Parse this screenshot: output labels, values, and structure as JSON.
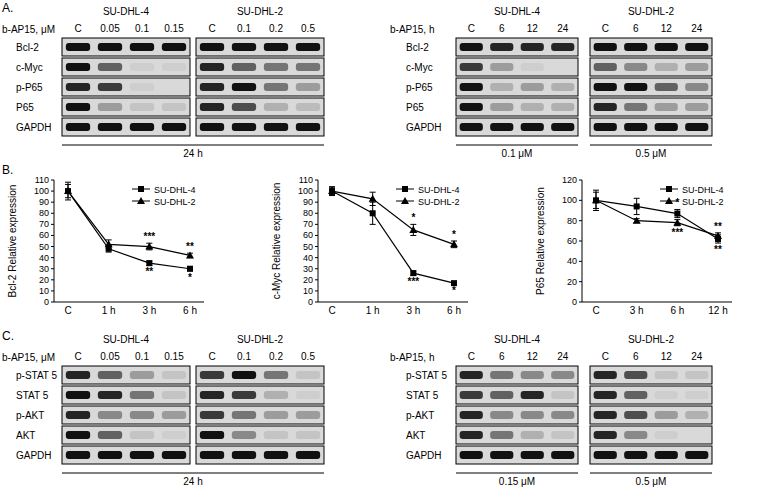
{
  "figure": {
    "panels": [
      {
        "letter": "A.",
        "blots": [
          {
            "treatment": "b-AP15, μM",
            "rows": [
              "Bcl-2",
              "c-Myc",
              "p-P65",
              "P65",
              "GAPDH"
            ],
            "footers": [
              "24 h"
            ],
            "groups": [
              {
                "cell_line": "SU-DHL-4",
                "lanes": [
                  "C",
                  "0.05",
                  "0.1",
                  "0.15"
                ],
                "intensity": [
                  [
                    1,
                    1,
                    1,
                    1
                  ],
                  [
                    1,
                    0.6,
                    0.05,
                    0.05
                  ],
                  [
                    0.9,
                    0.8,
                    0.05,
                    0
                  ],
                  [
                    1,
                    0.3,
                    0.1,
                    0.1
                  ],
                  [
                    1,
                    1,
                    1,
                    1
                  ]
                ]
              },
              {
                "cell_line": "SU-DHL-2",
                "lanes": [
                  "C",
                  "0.1",
                  "0.2",
                  "0.5"
                ],
                "intensity": [
                  [
                    1,
                    1,
                    1,
                    1
                  ],
                  [
                    0.9,
                    0.6,
                    0.5,
                    0.5
                  ],
                  [
                    0.9,
                    1,
                    0.5,
                    0.3
                  ],
                  [
                    0.9,
                    0.7,
                    0.2,
                    0.15
                  ],
                  [
                    1,
                    1,
                    1,
                    1
                  ]
                ]
              }
            ]
          },
          {
            "treatment": "b-AP15, h",
            "rows": [
              "Bcl-2",
              "c-Myc",
              "p-P65",
              "P65",
              "GAPDH"
            ],
            "footers": [
              "0.1 μM",
              "0.5 μM"
            ],
            "groups": [
              {
                "cell_line": "SU-DHL-4",
                "lanes": [
                  "C",
                  "6",
                  "12",
                  "24"
                ],
                "intensity": [
                  [
                    1,
                    0.9,
                    0.9,
                    0.9
                  ],
                  [
                    0.8,
                    0.3,
                    0.05,
                    0
                  ],
                  [
                    1,
                    0.2,
                    0.3,
                    0.2
                  ],
                  [
                    1,
                    0.3,
                    0.2,
                    0.2
                  ],
                  [
                    1,
                    1,
                    1,
                    1
                  ]
                ]
              },
              {
                "cell_line": "SU-DHL-2",
                "lanes": [
                  "C",
                  "6",
                  "12",
                  "24"
                ],
                "intensity": [
                  [
                    1,
                    1,
                    1,
                    1
                  ],
                  [
                    0.6,
                    0.4,
                    0.2,
                    0.3
                  ],
                  [
                    1,
                    1,
                    0.6,
                    0.4
                  ],
                  [
                    0.9,
                    0.5,
                    0.3,
                    0.3
                  ],
                  [
                    1,
                    1,
                    1,
                    1
                  ]
                ]
              }
            ]
          }
        ]
      },
      {
        "letter": "B."
      },
      {
        "letter": "C.",
        "blots": [
          {
            "treatment": "b-AP15, μM",
            "rows": [
              "p-STAT 5",
              "STAT 5",
              "p-AKT",
              "AKT",
              "GAPDH"
            ],
            "footers": [
              "24 h"
            ],
            "groups": [
              {
                "cell_line": "SU-DHL-4",
                "lanes": [
                  "C",
                  "0.05",
                  "0.1",
                  "0.15"
                ],
                "intensity": [
                  [
                    0.9,
                    0.6,
                    0.3,
                    0.1
                  ],
                  [
                    1,
                    0.9,
                    0.5,
                    0.1
                  ],
                  [
                    0.9,
                    0.4,
                    0.4,
                    0.3
                  ],
                  [
                    1,
                    0.6,
                    0.1,
                    0.05
                  ],
                  [
                    1,
                    1,
                    1,
                    1
                  ]
                ]
              },
              {
                "cell_line": "SU-DHL-2",
                "lanes": [
                  "C",
                  "0.1",
                  "0.2",
                  "0.5"
                ],
                "intensity": [
                  [
                    0.8,
                    1,
                    0.5,
                    0.1
                  ],
                  [
                    0.9,
                    0.8,
                    0.2,
                    0.05
                  ],
                  [
                    0.8,
                    0.5,
                    0.3,
                    0.3
                  ],
                  [
                    1,
                    0.4,
                    0.1,
                    0.1
                  ],
                  [
                    1,
                    1,
                    1,
                    1
                  ]
                ]
              }
            ]
          },
          {
            "treatment": "b-AP15, h",
            "rows": [
              "p-STAT 5",
              "STAT 5",
              "p-AKT",
              "AKT",
              "GAPDH"
            ],
            "footers": [
              "0.15 μM",
              "0.5 μM"
            ],
            "groups": [
              {
                "cell_line": "SU-DHL-4",
                "lanes": [
                  "C",
                  "6",
                  "12",
                  "24"
                ],
                "intensity": [
                  [
                    0.9,
                    0.5,
                    0.4,
                    0.4
                  ],
                  [
                    0.8,
                    0.6,
                    0.9,
                    0.1
                  ],
                  [
                    0.9,
                    0.4,
                    0.4,
                    0.4
                  ],
                  [
                    0.9,
                    0.5,
                    0.2,
                    0.1
                  ],
                  [
                    1,
                    1,
                    1,
                    1
                  ]
                ]
              },
              {
                "cell_line": "SU-DHL-2",
                "lanes": [
                  "C",
                  "6",
                  "12",
                  "24"
                ],
                "intensity": [
                  [
                    0.9,
                    0.7,
                    0.1,
                    0.1
                  ],
                  [
                    0.9,
                    0.6,
                    0.05,
                    0.05
                  ],
                  [
                    0.9,
                    0.7,
                    0.3,
                    0.2
                  ],
                  [
                    0.9,
                    0.4,
                    0.05,
                    0
                  ],
                  [
                    1,
                    1,
                    1,
                    1
                  ]
                ]
              }
            ]
          }
        ]
      }
    ]
  },
  "chart_data": [
    {
      "type": "line",
      "y_label": "Bcl-2 Relative expression",
      "categories": [
        "C",
        "1 h",
        "3 h",
        "6 h"
      ],
      "ylim": [
        0,
        110
      ],
      "yticks": [
        0,
        10,
        20,
        30,
        40,
        50,
        60,
        70,
        80,
        90,
        100,
        110
      ],
      "legend": "upper right",
      "series": [
        {
          "name": "SU-DHL-4",
          "color": "#000000",
          "marker": "square",
          "line_style": "solid",
          "values": [
            100,
            48,
            35,
            30
          ],
          "errors": [
            8,
            3,
            2,
            2
          ],
          "significance": [
            null,
            null,
            "**",
            "*"
          ]
        },
        {
          "name": "SU-DHL-2",
          "color": "#000000",
          "marker": "triangle",
          "line_style": "solid",
          "values": [
            100,
            52,
            50,
            42
          ],
          "errors": [
            6,
            4,
            3,
            2
          ],
          "significance": [
            null,
            null,
            "***",
            "**"
          ]
        }
      ]
    },
    {
      "type": "line",
      "y_label": "c-Myc Relative expression",
      "categories": [
        "C",
        "1 h",
        "3 h",
        "6 h"
      ],
      "ylim": [
        0,
        110
      ],
      "yticks": [
        0,
        10,
        20,
        30,
        40,
        50,
        60,
        70,
        80,
        90,
        100,
        110
      ],
      "legend": "upper right",
      "series": [
        {
          "name": "SU-DHL-4",
          "color": "#000000",
          "marker": "square",
          "line_style": "solid",
          "values": [
            100,
            80,
            26,
            17
          ],
          "errors": [
            4,
            10,
            2,
            1
          ],
          "significance": [
            null,
            null,
            "***",
            "*"
          ]
        },
        {
          "name": "SU-DHL-2",
          "color": "#000000",
          "marker": "triangle",
          "line_style": "solid",
          "values": [
            100,
            93,
            65,
            52
          ],
          "errors": [
            3,
            6,
            5,
            3
          ],
          "significance": [
            null,
            null,
            "*",
            "*"
          ]
        }
      ]
    },
    {
      "type": "line",
      "y_label": "P65 Relative expression",
      "categories": [
        "C",
        "3 h",
        "6 h",
        "12 h"
      ],
      "ylim": [
        0,
        120
      ],
      "yticks": [
        0,
        20,
        40,
        60,
        80,
        100,
        120
      ],
      "legend": "upper right",
      "series": [
        {
          "name": "SU-DHL-4",
          "color": "#000000",
          "marker": "square",
          "line_style": "solid",
          "values": [
            100,
            94,
            87,
            62
          ],
          "errors": [
            8,
            8,
            4,
            4
          ],
          "significance": [
            null,
            null,
            "*",
            "**"
          ]
        },
        {
          "name": "SU-DHL-2",
          "color": "#000000",
          "marker": "triangle",
          "line_style": "solid",
          "values": [
            100,
            80,
            78,
            65
          ],
          "errors": [
            10,
            2,
            3,
            3
          ],
          "significance": [
            null,
            null,
            "***",
            "**"
          ]
        }
      ]
    }
  ]
}
